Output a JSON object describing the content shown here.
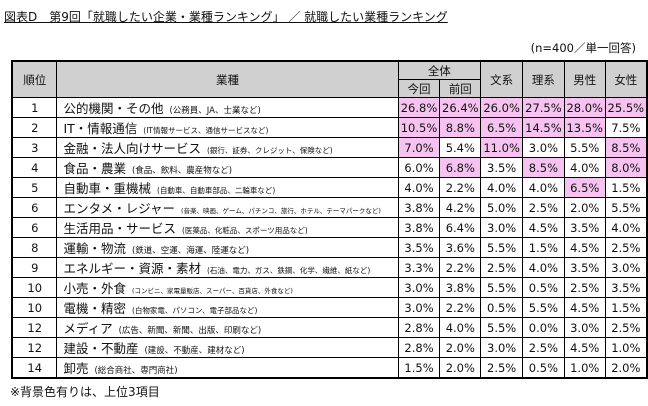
{
  "title": "図表D　第9回「就職したい企業・業種ランキング」 ／ 就職したい業種ランキング",
  "note_top": "(n=400／単一回答)",
  "bottom_note": "※背景色有りは、上位3項目",
  "highlight_color": "#f6c3f1",
  "header_color": "#d0d0d0",
  "chart_data": {
    "type": "table",
    "headers": {
      "rank": "順位",
      "industry": "業種",
      "overall": "全体",
      "current": "今回",
      "previous": "前回",
      "humanities": "文系",
      "science": "理系",
      "male": "男性",
      "female": "女性"
    },
    "rows": [
      {
        "rank": "1",
        "name": "公的機関・その他",
        "note": "(公務員、JA、士業など)",
        "note_size": "m",
        "values": [
          "26.8%",
          "26.4%",
          "26.0%",
          "27.5%",
          "28.0%",
          "25.5%"
        ],
        "hl": [
          true,
          true,
          true,
          true,
          true,
          true
        ]
      },
      {
        "rank": "2",
        "name": "IT・情報通信",
        "note": "(IT情報サービス、通信サービスなど)",
        "note_size": "s",
        "values": [
          "10.5%",
          "8.8%",
          "6.5%",
          "14.5%",
          "13.5%",
          "7.5%"
        ],
        "hl": [
          true,
          true,
          true,
          true,
          true,
          false
        ]
      },
      {
        "rank": "3",
        "name": "金融・法人向けサービス",
        "note": "(銀行、証券、クレジット、保険など)",
        "note_size": "s",
        "values": [
          "7.0%",
          "5.4%",
          "11.0%",
          "3.0%",
          "5.5%",
          "8.5%"
        ],
        "hl": [
          true,
          false,
          true,
          false,
          false,
          true
        ]
      },
      {
        "rank": "4",
        "name": "食品・農業",
        "note": "(食品、飲料、農産物など)",
        "note_size": "m",
        "values": [
          "6.0%",
          "6.8%",
          "3.5%",
          "8.5%",
          "4.0%",
          "8.0%"
        ],
        "hl": [
          false,
          true,
          false,
          true,
          false,
          true
        ]
      },
      {
        "rank": "5",
        "name": "自動車・重機械",
        "note": "(自動車、自動車部品、二輪車など)",
        "note_size": "s",
        "values": [
          "4.0%",
          "2.2%",
          "4.0%",
          "4.0%",
          "6.5%",
          "1.5%"
        ],
        "hl": [
          false,
          false,
          false,
          false,
          true,
          false
        ]
      },
      {
        "rank": "6",
        "name": "エンタメ・レジャー",
        "note": "(音楽、映画、ゲーム、パチンコ、旅行、ホテル、テーマパークなど)",
        "note_size": "xs",
        "values": [
          "3.8%",
          "4.2%",
          "5.0%",
          "2.5%",
          "2.0%",
          "5.5%"
        ],
        "hl": [
          false,
          false,
          false,
          false,
          false,
          false
        ]
      },
      {
        "rank": "6",
        "name": "生活用品・サービス",
        "note": "(医薬品、化粧品、スポーツ用品など)",
        "note_size": "s",
        "values": [
          "3.8%",
          "6.4%",
          "3.0%",
          "4.5%",
          "3.5%",
          "4.0%"
        ],
        "hl": [
          false,
          false,
          false,
          false,
          false,
          false
        ]
      },
      {
        "rank": "8",
        "name": "運輸・物流",
        "note": "(鉄道、空運、海運、陸運など)",
        "note_size": "m",
        "values": [
          "3.5%",
          "3.6%",
          "5.5%",
          "1.5%",
          "4.5%",
          "2.5%"
        ],
        "hl": [
          false,
          false,
          false,
          false,
          false,
          false
        ]
      },
      {
        "rank": "9",
        "name": "エネルギー・資源・素材",
        "note": "(石油、電力、ガス、鉄鋼、化学、繊維、紙など)",
        "note_size": "s",
        "values": [
          "3.3%",
          "2.2%",
          "2.5%",
          "4.0%",
          "3.5%",
          "3.0%"
        ],
        "hl": [
          false,
          false,
          false,
          false,
          false,
          false
        ]
      },
      {
        "rank": "10",
        "name": "小売・外食",
        "note": "(コンビニ、家電量販店、スーパー、百貨店、外食など)",
        "note_size": "xs",
        "values": [
          "3.0%",
          "3.8%",
          "5.5%",
          "0.5%",
          "2.5%",
          "3.5%"
        ],
        "hl": [
          false,
          false,
          false,
          false,
          false,
          false
        ]
      },
      {
        "rank": "10",
        "name": "電機・精密",
        "note": "(白物家電、パソコン、電子部品など)",
        "note_size": "s",
        "values": [
          "3.0%",
          "2.2%",
          "0.5%",
          "5.5%",
          "4.5%",
          "1.5%"
        ],
        "hl": [
          false,
          false,
          false,
          false,
          false,
          false
        ]
      },
      {
        "rank": "12",
        "name": "メディア",
        "note": "(広告、新聞、新聞、出版、印刷など)",
        "note_size": "m",
        "values": [
          "2.8%",
          "4.0%",
          "5.5%",
          "0.0%",
          "3.0%",
          "2.5%"
        ],
        "hl": [
          false,
          false,
          false,
          false,
          false,
          false
        ]
      },
      {
        "rank": "12",
        "name": "建設・不動産",
        "note": "(建設、不動産、建材など)",
        "note_size": "m",
        "values": [
          "2.8%",
          "2.0%",
          "3.0%",
          "2.5%",
          "4.5%",
          "1.0%"
        ],
        "hl": [
          false,
          false,
          false,
          false,
          false,
          false
        ]
      },
      {
        "rank": "14",
        "name": "卸売",
        "note": "(総合商社、専門商社)",
        "note_size": "m",
        "values": [
          "1.5%",
          "2.0%",
          "2.5%",
          "0.5%",
          "1.0%",
          "2.0%"
        ],
        "hl": [
          false,
          false,
          false,
          false,
          false,
          false
        ]
      }
    ]
  }
}
